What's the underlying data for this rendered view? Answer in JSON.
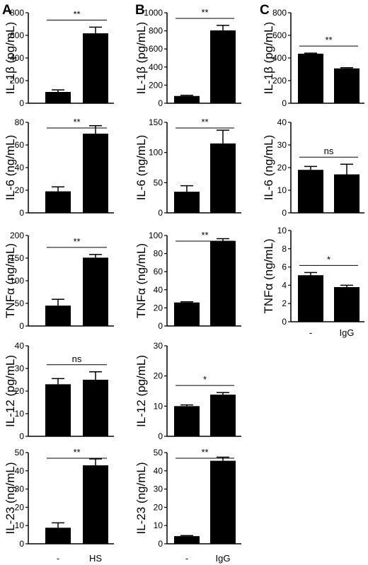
{
  "panels": [
    {
      "letter": "A",
      "categories": [
        "-",
        "HS"
      ]
    },
    {
      "letter": "B",
      "categories": [
        "-",
        "IgG"
      ]
    },
    {
      "letter": "C",
      "categories": [
        "-",
        "IgG"
      ]
    }
  ],
  "chart_data": [
    {
      "type": "bar",
      "panel": "A",
      "ylabel": "IL-1β (pg/mL)",
      "categories": [
        "-",
        "HS"
      ],
      "values": [
        100,
        618
      ],
      "errors": [
        18,
        55
      ],
      "ylim": [
        0,
        800
      ],
      "yticks": [
        0,
        200,
        400,
        600,
        800
      ],
      "significance": "**"
    },
    {
      "type": "bar",
      "panel": "A",
      "ylabel": "IL-6 (ng/mL)",
      "categories": [
        "-",
        "HS"
      ],
      "values": [
        19,
        70
      ],
      "errors": [
        4,
        7
      ],
      "ylim": [
        0,
        80
      ],
      "yticks": [
        0,
        20,
        40,
        60,
        80
      ],
      "significance": "**"
    },
    {
      "type": "bar",
      "panel": "A",
      "ylabel": "TNFα (ng/mL)",
      "categories": [
        "-",
        "HS"
      ],
      "values": [
        45,
        151
      ],
      "errors": [
        14,
        7
      ],
      "ylim": [
        0,
        200
      ],
      "yticks": [
        0,
        50,
        100,
        150,
        200
      ],
      "significance": "**"
    },
    {
      "type": "bar",
      "panel": "A",
      "ylabel": "IL-12 (pg/mL)",
      "categories": [
        "-",
        "HS"
      ],
      "values": [
        23,
        25
      ],
      "errors": [
        2.5,
        3.5
      ],
      "ylim": [
        0,
        40
      ],
      "yticks": [
        0,
        10,
        20,
        30,
        40
      ],
      "significance": "ns"
    },
    {
      "type": "bar",
      "panel": "A",
      "ylabel": "IL-23 (ng/mL)",
      "categories": [
        "-",
        "HS"
      ],
      "values": [
        8.8,
        43
      ],
      "errors": [
        2.7,
        3.5
      ],
      "ylim": [
        0,
        50
      ],
      "yticks": [
        0,
        10,
        20,
        30,
        40,
        50
      ],
      "significance": "**"
    },
    {
      "type": "bar",
      "panel": "B",
      "ylabel": "IL-1β (pg/mL)",
      "categories": [
        "-",
        "IgG"
      ],
      "values": [
        80,
        805
      ],
      "errors": [
        8,
        55
      ],
      "ylim": [
        0,
        1000
      ],
      "yticks": [
        0,
        200,
        400,
        600,
        800,
        1000
      ],
      "significance": "**"
    },
    {
      "type": "bar",
      "panel": "B",
      "ylabel": "IL-6 (ng/mL)",
      "categories": [
        "-",
        "IgG"
      ],
      "values": [
        35,
        115
      ],
      "errors": [
        10,
        22
      ],
      "ylim": [
        0,
        150
      ],
      "yticks": [
        0,
        50,
        100,
        150
      ],
      "significance": "**"
    },
    {
      "type": "bar",
      "panel": "B",
      "ylabel": "TNFα (ng/mL)",
      "categories": [
        "-",
        "IgG"
      ],
      "values": [
        26,
        94
      ],
      "errors": [
        0.8,
        2.5
      ],
      "ylim": [
        0,
        100
      ],
      "yticks": [
        0,
        20,
        40,
        60,
        80,
        100
      ],
      "significance": "**"
    },
    {
      "type": "bar",
      "panel": "B",
      "ylabel": "IL-12 (pg/mL)",
      "categories": [
        "-",
        "IgG"
      ],
      "values": [
        10,
        13.8
      ],
      "errors": [
        0.4,
        0.7
      ],
      "ylim": [
        0,
        30
      ],
      "yticks": [
        0,
        10,
        20,
        30
      ],
      "significance": "*"
    },
    {
      "type": "bar",
      "panel": "B",
      "ylabel": "IL-23 (ng/mL)",
      "categories": [
        "-",
        "IgG"
      ],
      "values": [
        4.2,
        45.5
      ],
      "errors": [
        0.3,
        2
      ],
      "ylim": [
        0,
        50
      ],
      "yticks": [
        0,
        10,
        20,
        30,
        40,
        50
      ],
      "significance": "**"
    },
    {
      "type": "bar",
      "panel": "C",
      "ylabel": "IL-1β (pg/mL)",
      "categories": [
        "-",
        "IgG"
      ],
      "values": [
        438,
        308
      ],
      "errors": [
        5,
        6
      ],
      "ylim": [
        0,
        800
      ],
      "yticks": [
        0,
        200,
        400,
        600,
        800
      ],
      "significance": "**"
    },
    {
      "type": "bar",
      "panel": "C",
      "ylabel": "IL-6 (ng/mL)",
      "categories": [
        "-",
        "IgG"
      ],
      "values": [
        19,
        17
      ],
      "errors": [
        1.5,
        4.5
      ],
      "ylim": [
        0,
        40
      ],
      "yticks": [
        0,
        10,
        20,
        30,
        40
      ],
      "significance": "ns"
    },
    {
      "type": "bar",
      "panel": "C",
      "ylabel": "TNFα (ng/mL)",
      "categories": [
        "-",
        "IgG"
      ],
      "values": [
        5.1,
        3.8
      ],
      "errors": [
        0.3,
        0.2
      ],
      "ylim": [
        0,
        10
      ],
      "yticks": [
        0,
        2,
        4,
        6,
        8,
        10
      ],
      "significance": "*"
    }
  ]
}
